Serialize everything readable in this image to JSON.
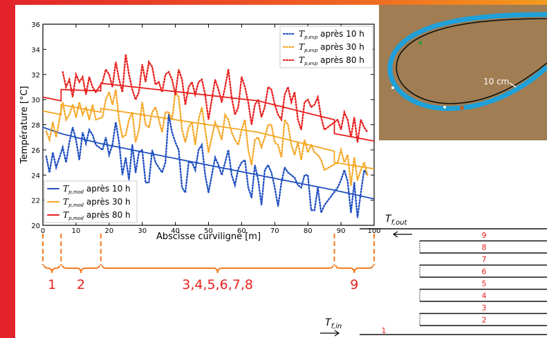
{
  "chart_data": {
    "type": "line",
    "xlabel": "Abscisse curviligne [m]",
    "ylabel": "Température [°C]",
    "xlim": [
      0,
      100
    ],
    "ylim": [
      20,
      36
    ],
    "xticks": [
      0,
      10,
      20,
      30,
      40,
      50,
      60,
      70,
      80,
      90,
      100
    ],
    "yticks": [
      20,
      22,
      24,
      26,
      28,
      30,
      32,
      34,
      36
    ],
    "grid": false,
    "legend_exp_position": "top-right",
    "legend_mod_position": "bottom-left",
    "series": [
      {
        "name": "T_p,mod après 10 h",
        "legend_sub": "p,mod",
        "legend_suffix": "après 10 h",
        "kind": "model",
        "color": "#1f4fbf",
        "x": [
          0,
          5.5,
          5.5,
          17.5,
          17.5,
          65,
          65,
          88,
          88,
          100
        ],
        "y": [
          27.8,
          27.3,
          27.3,
          26.5,
          26.5,
          24.0,
          24.0,
          22.8,
          22.8,
          22.1
        ]
      },
      {
        "name": "T_p,mod après 30 h",
        "legend_sub": "p,mod",
        "legend_suffix": "après 30 h",
        "kind": "model",
        "color": "#f5a623",
        "x": [
          0,
          5.5,
          5.5,
          17.5,
          17.5,
          65,
          65,
          88,
          88,
          100
        ],
        "y": [
          29.1,
          28.8,
          29.6,
          29.0,
          29.3,
          27.4,
          27.4,
          25.9,
          25.0,
          24.5
        ]
      },
      {
        "name": "T_p,mod après 80 h",
        "legend_sub": "p,mod",
        "legend_suffix": "après 80 h",
        "kind": "model",
        "color": "#e8201e",
        "x": [
          0,
          5.5,
          5.5,
          17.5,
          17.5,
          65,
          65,
          88,
          88,
          100
        ],
        "y": [
          30.2,
          29.9,
          30.8,
          30.7,
          31.3,
          29.9,
          29.9,
          28.4,
          27.3,
          26.7
        ]
      },
      {
        "name": "T_p,exp après 10 h",
        "legend_sub": "p,exp",
        "legend_suffix": "après 10 h",
        "kind": "experimental",
        "color": "#1f4fbf",
        "x": [
          1,
          2,
          3,
          4,
          6,
          7,
          8,
          9,
          10,
          11,
          12,
          13,
          14,
          15,
          16,
          18,
          19,
          20,
          21,
          22,
          23,
          24,
          25,
          26,
          27,
          28,
          29,
          30,
          31,
          32,
          33,
          34,
          36,
          37,
          38,
          39,
          40,
          41,
          42,
          43,
          44,
          45,
          46,
          47,
          48,
          49,
          50,
          52,
          53,
          54,
          55,
          56,
          57,
          58,
          59,
          60,
          61,
          62,
          63,
          64,
          65,
          66,
          67,
          68,
          69,
          70,
          71,
          72,
          73,
          74,
          75,
          76,
          77,
          78,
          79,
          80,
          81,
          82,
          83,
          84,
          85,
          89,
          90,
          91,
          92,
          93,
          94,
          95,
          96,
          97,
          98
        ],
        "y": [
          25.5,
          24.2,
          25.8,
          24.6,
          26.2,
          25.0,
          26.6,
          27.8,
          26.8,
          25.2,
          27.4,
          26.5,
          27.6,
          27.2,
          26.4,
          26.0,
          27.0,
          25.6,
          26.4,
          28.2,
          26.6,
          24.0,
          25.4,
          23.6,
          26.4,
          24.2,
          25.8,
          26.0,
          23.4,
          23.4,
          26.0,
          25.0,
          24.2,
          25.0,
          28.8,
          27.4,
          26.6,
          26.0,
          23.0,
          22.6,
          25.0,
          25.0,
          24.4,
          26.0,
          26.4,
          24.0,
          22.6,
          25.4,
          24.8,
          24.0,
          25.0,
          26.0,
          24.0,
          23.2,
          24.5,
          25.0,
          25.2,
          23.0,
          22.2,
          24.8,
          23.6,
          21.6,
          24.4,
          24.8,
          24.2,
          23.0,
          21.5,
          23.4,
          24.6,
          24.2,
          24.0,
          23.8,
          23.2,
          23.0,
          24.0,
          24.0,
          21.2,
          21.2,
          23.0,
          21.0,
          21.6,
          23.0,
          23.6,
          24.4,
          23.5,
          21.0,
          23.4,
          20.6,
          22.6,
          24.4,
          24.0
        ]
      },
      {
        "name": "T_p,exp après 30 h",
        "legend_sub": "p,exp",
        "legend_suffix": "après 30 h",
        "kind": "experimental",
        "color": "#f5a623",
        "x": [
          1,
          2,
          3,
          4,
          6,
          7,
          8,
          9,
          10,
          11,
          12,
          13,
          14,
          15,
          16,
          18,
          19,
          20,
          21,
          22,
          23,
          24,
          25,
          26,
          27,
          28,
          29,
          30,
          31,
          32,
          33,
          34,
          36,
          37,
          38,
          39,
          40,
          41,
          42,
          43,
          44,
          45,
          46,
          47,
          48,
          49,
          50,
          52,
          53,
          54,
          55,
          56,
          57,
          58,
          59,
          60,
          61,
          62,
          63,
          64,
          65,
          66,
          67,
          68,
          69,
          70,
          71,
          72,
          73,
          74,
          75,
          76,
          77,
          78,
          79,
          80,
          81,
          82,
          83,
          84,
          85,
          89,
          90,
          91,
          92,
          93,
          94,
          95,
          96,
          97,
          98
        ],
        "y": [
          27.5,
          26.8,
          28.2,
          27.0,
          29.8,
          28.4,
          28.8,
          29.6,
          28.6,
          29.8,
          28.8,
          29.4,
          28.4,
          29.6,
          28.4,
          28.6,
          30.0,
          30.6,
          29.6,
          30.8,
          28.4,
          27.0,
          27.2,
          28.4,
          29.0,
          26.6,
          27.6,
          29.8,
          28.0,
          27.8,
          29.0,
          29.4,
          27.4,
          29.0,
          29.0,
          28.4,
          30.6,
          30.2,
          27.6,
          26.6,
          27.8,
          28.2,
          26.4,
          28.4,
          29.4,
          27.6,
          25.8,
          28.2,
          27.6,
          26.8,
          28.8,
          28.4,
          27.4,
          26.8,
          26.4,
          27.6,
          28.4,
          26.0,
          24.8,
          26.8,
          27.0,
          26.2,
          27.0,
          28.0,
          28.0,
          26.6,
          26.4,
          25.4,
          28.4,
          28.0,
          26.4,
          25.6,
          26.6,
          25.2,
          26.8,
          25.8,
          26.4,
          25.8,
          25.6,
          25.2,
          24.4,
          25.0,
          26.0,
          25.0,
          25.6,
          23.2,
          25.4,
          23.6,
          24.4,
          25.0,
          24.0
        ]
      },
      {
        "name": "T_p,exp après 80 h",
        "legend_sub": "p,exp",
        "legend_suffix": "après 80 h",
        "kind": "experimental",
        "color": "#e8201e",
        "x": [
          6,
          7,
          8,
          9,
          10,
          11,
          12,
          13,
          14,
          15,
          16,
          18,
          19,
          20,
          21,
          22,
          23,
          24,
          25,
          26,
          27,
          28,
          29,
          30,
          31,
          32,
          33,
          34,
          35,
          36,
          37,
          38,
          39,
          40,
          41,
          42,
          43,
          44,
          45,
          46,
          47,
          48,
          49,
          50,
          52,
          53,
          54,
          55,
          56,
          57,
          58,
          59,
          60,
          61,
          62,
          63,
          64,
          65,
          66,
          67,
          68,
          69,
          70,
          71,
          72,
          73,
          74,
          75,
          76,
          77,
          78,
          79,
          80,
          81,
          82,
          83,
          84,
          85,
          89,
          90,
          91,
          92,
          93,
          94,
          95,
          96,
          97,
          98
        ],
        "y": [
          32.2,
          31.0,
          31.6,
          30.2,
          32.0,
          31.4,
          31.8,
          30.4,
          31.8,
          31.0,
          30.6,
          31.4,
          32.4,
          32.0,
          31.0,
          33.0,
          31.6,
          30.6,
          33.6,
          32.0,
          30.8,
          30.0,
          30.6,
          32.8,
          31.4,
          33.0,
          32.6,
          31.2,
          31.4,
          30.6,
          32.0,
          32.2,
          31.6,
          30.4,
          32.4,
          31.6,
          29.6,
          31.0,
          31.4,
          30.4,
          31.4,
          31.6,
          30.4,
          28.4,
          31.6,
          30.8,
          29.8,
          31.0,
          32.4,
          30.2,
          28.8,
          29.4,
          31.8,
          31.0,
          29.8,
          28.0,
          29.6,
          30.0,
          28.6,
          29.4,
          31.0,
          30.8,
          29.6,
          28.8,
          28.4,
          30.4,
          31.0,
          29.8,
          30.6,
          28.4,
          27.6,
          29.8,
          30.0,
          29.4,
          29.6,
          30.2,
          28.6,
          27.6,
          28.4,
          27.6,
          29.0,
          28.4,
          27.0,
          28.6,
          26.6,
          28.4,
          27.8,
          27.4
        ]
      }
    ]
  },
  "legend": {
    "var_letter": "T"
  },
  "segments": {
    "color": "#f47b20",
    "boundaries_m": [
      0,
      5.5,
      17.5,
      88,
      100
    ],
    "labels": [
      "1",
      "2",
      "3,4,5,6,7,8",
      "9"
    ]
  },
  "photo": {
    "scale_label": "10 cm",
    "sand_color": "#a07d52",
    "tube_color": "#1fa0d8"
  },
  "pipe_diagram": {
    "out_label_main": "T",
    "out_label_sub": "f,out",
    "in_label_main": "T",
    "in_label_sub": "f,in",
    "label_color": "#e8201e",
    "rows": [
      "9",
      "8",
      "7",
      "6",
      "5",
      "4",
      "3",
      "2"
    ],
    "start_label": "1"
  }
}
